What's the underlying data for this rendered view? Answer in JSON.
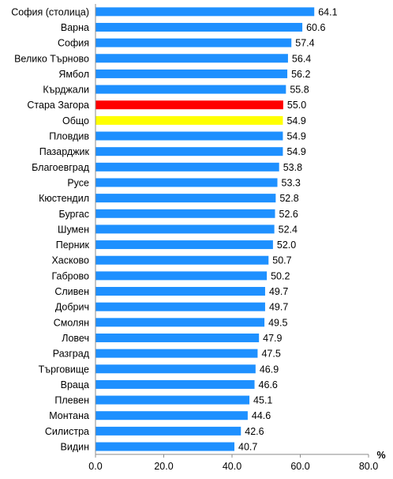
{
  "chart_data": {
    "type": "bar",
    "orientation": "horizontal",
    "categories": [
      "София (столица)",
      "Варна",
      "София",
      "Велико Търново",
      "Ямбол",
      "Кърджали",
      "Стара Загора",
      "Общо",
      "Пловдив",
      "Пазарджик",
      "Благоевград",
      "Русе",
      "Кюстендил",
      "Бургас",
      "Шумен",
      "Перник",
      "Хасково",
      "Габрово",
      "Сливен",
      "Добрич",
      "Смолян",
      "Ловеч",
      "Разград",
      "Търговище",
      "Враца",
      "Плевен",
      "Монтана",
      "Силистра",
      "Видин"
    ],
    "values": [
      64.1,
      60.6,
      57.4,
      56.4,
      56.2,
      55.8,
      55.0,
      54.9,
      54.9,
      54.9,
      53.8,
      53.3,
      52.8,
      52.6,
      52.4,
      52.0,
      50.7,
      50.2,
      49.7,
      49.7,
      49.5,
      47.9,
      47.5,
      46.9,
      46.6,
      45.1,
      44.6,
      42.6,
      40.7
    ],
    "value_labels": [
      "64.1",
      "60.6",
      "57.4",
      "56.4",
      "56.2",
      "55.8",
      "55.0",
      "54.9",
      "54.9",
      "54.9",
      "53.8",
      "53.3",
      "52.8",
      "52.6",
      "52.4",
      "52.0",
      "50.7",
      "50.2",
      "49.7",
      "49.7",
      "49.5",
      "47.9",
      "47.5",
      "46.9",
      "46.6",
      "45.1",
      "44.6",
      "42.6",
      "40.7"
    ],
    "colors": [
      "#1E90FF",
      "#1E90FF",
      "#1E90FF",
      "#1E90FF",
      "#1E90FF",
      "#1E90FF",
      "#FF0000",
      "#FFFF00",
      "#1E90FF",
      "#1E90FF",
      "#1E90FF",
      "#1E90FF",
      "#1E90FF",
      "#1E90FF",
      "#1E90FF",
      "#1E90FF",
      "#1E90FF",
      "#1E90FF",
      "#1E90FF",
      "#1E90FF",
      "#1E90FF",
      "#1E90FF",
      "#1E90FF",
      "#1E90FF",
      "#1E90FF",
      "#1E90FF",
      "#1E90FF",
      "#1E90FF",
      "#1E90FF"
    ],
    "xlim": [
      0,
      80
    ],
    "x_ticks": [
      0,
      20,
      40,
      60,
      80
    ],
    "x_tick_labels": [
      "0.0",
      "20.0",
      "40.0",
      "60.0",
      "80.0"
    ],
    "x_unit_label": "%",
    "grid": false,
    "legend": "none"
  }
}
